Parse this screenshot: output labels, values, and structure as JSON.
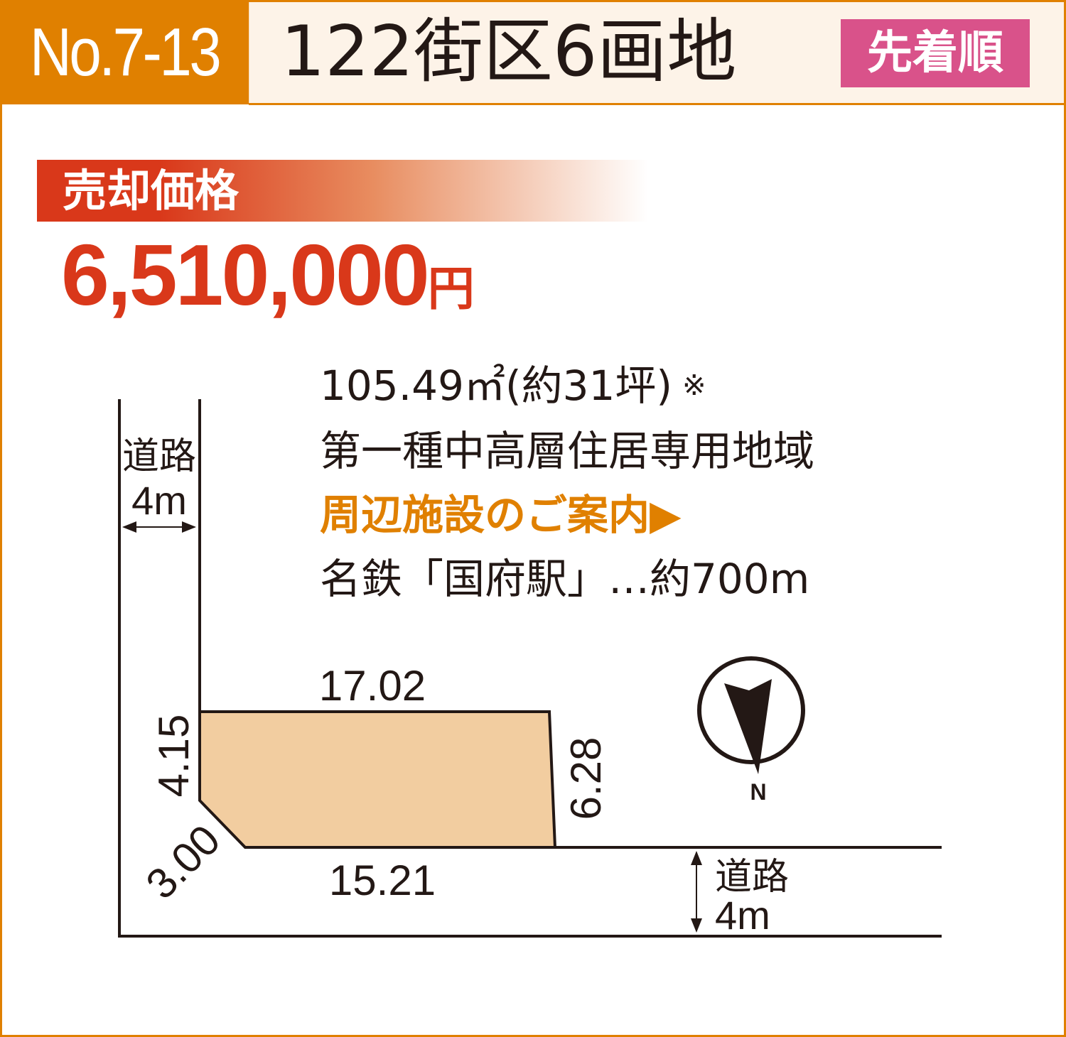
{
  "header": {
    "lot_number": "No.7-13",
    "title": "122街区6画地",
    "badge": "先着順"
  },
  "price": {
    "label": "売却価格",
    "amount": "6,510,000",
    "unit": "円"
  },
  "details": {
    "area": "105.49㎡(約31坪)",
    "area_note_mark": "※",
    "zoning": "第一種中高層住居専用地域",
    "facilities_link": "周辺施設のご案内▶",
    "station": "名鉄「国府駅」…約700m"
  },
  "plan": {
    "road_left_label": "道路",
    "road_left_width": "4m",
    "road_bottom_label": "道路",
    "road_bottom_width": "4m",
    "edge_top": "17.02",
    "edge_left": "4.15",
    "edge_right": "6.28",
    "edge_bottom": "15.21",
    "edge_corner": "3.00",
    "north_label": "N",
    "lot_fill": "#f2cda0"
  },
  "colors": {
    "brand_orange": "#e08000",
    "price_red": "#d9381a",
    "badge_pink": "#d9528a"
  }
}
